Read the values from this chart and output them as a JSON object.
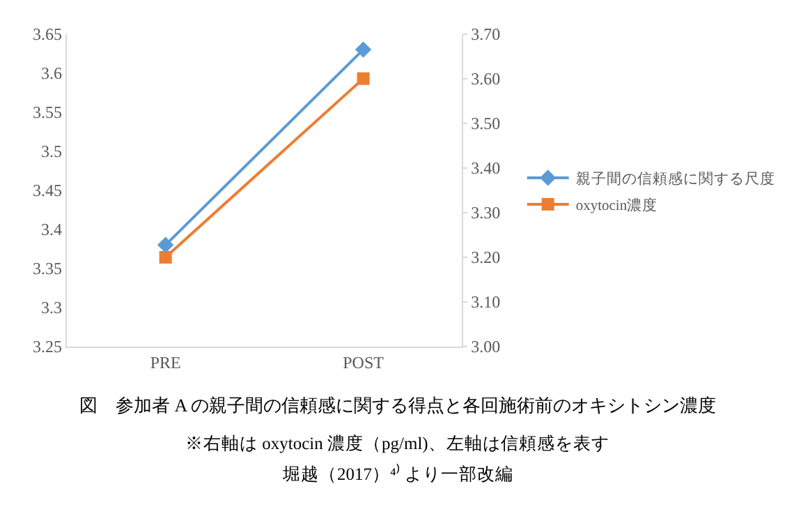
{
  "chart_data": {
    "type": "line",
    "categories": [
      "PRE",
      "POST"
    ],
    "series": [
      {
        "name": "親子間の信頼感に関する尺度",
        "color": "#5b9bd5",
        "marker": "diamond",
        "values": [
          3.38,
          3.63
        ]
      },
      {
        "name": "oxytocin濃度",
        "color": "#ed7d31",
        "marker": "square",
        "axis": "y2",
        "values": [
          3.2,
          3.6
        ]
      }
    ],
    "ylim": [
      3.25,
      3.65
    ],
    "yticks": [
      3.25,
      3.3,
      3.35,
      3.4,
      3.45,
      3.5,
      3.55,
      3.6,
      3.65
    ],
    "y2lim": [
      3.0,
      3.7
    ],
    "y2ticks": [
      {
        "value": 3.0,
        "label": "3.00"
      },
      {
        "value": 3.1,
        "label": "3.10"
      },
      {
        "value": 3.2,
        "label": "3.20"
      },
      {
        "value": 3.3,
        "label": "3.30"
      },
      {
        "value": 3.4,
        "label": "3.40"
      },
      {
        "value": 3.5,
        "label": "3.50"
      },
      {
        "value": 3.6,
        "label": "3.60"
      },
      {
        "value": 3.7,
        "label": "3.70"
      }
    ],
    "legend": "right",
    "line_style": "solid",
    "annotations": [
      "図　参加者 A の親子間の信頼感に関する得点と各回施術前のオキシトシン濃度",
      "※右軸は oxytocin 濃度（pg/ml)、左軸は信頼感を表す",
      "堀越（2017）⁴⁾ より一部改編"
    ]
  }
}
